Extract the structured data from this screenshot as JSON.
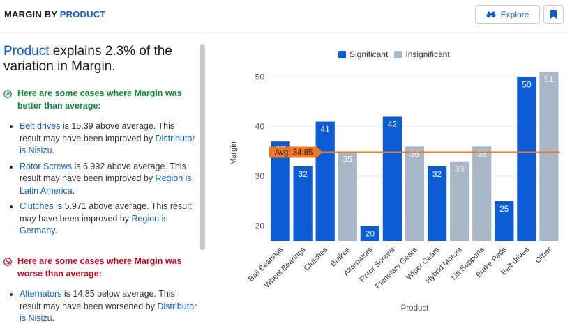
{
  "header": {
    "title_prefix": "MARGIN BY ",
    "title_accent": "PRODUCT",
    "explore_label": "Explore",
    "icons": {
      "explore": "binoculars-icon",
      "bookmark": "bookmark-icon"
    }
  },
  "summary": {
    "headline_accent": "Product",
    "headline_rest": " explains 2.3% of the variation in Margin.",
    "better_heading": "Here are some cases where Margin was better than average:",
    "worse_heading": "Here are some cases where Margin was worse than average:",
    "better_items": [
      {
        "subject": "Belt drives",
        "text": " is 15.39 above average. This result may have been improved by ",
        "link": "Distributor is Nisizu",
        "end": "."
      },
      {
        "subject": "Rotor Screws",
        "text": " is 6.992 above average. This result may have been improved by ",
        "link": "Region is Latin America",
        "end": "."
      },
      {
        "subject": "Clutches",
        "text": " is 5.971 above average. This result may have been improved by ",
        "link": "Region is Germany",
        "end": "."
      }
    ],
    "worse_items": [
      {
        "subject": "Alternators",
        "text": " is 14.85 below average. This result may have been worsened by ",
        "link": "Distributor is Nisizu",
        "end": "."
      }
    ]
  },
  "colors": {
    "significant": "#0b5cd5",
    "insignificant": "#a9b8c9",
    "average_line": "#f0781e",
    "better": "#0a8a3a",
    "worse": "#d0021b"
  },
  "chart_data": {
    "type": "bar",
    "title": "",
    "xlabel": "Product",
    "ylabel": "Margin",
    "ylim": [
      17,
      52
    ],
    "yticks": [
      20,
      30,
      40,
      50
    ],
    "grid": true,
    "legend": [
      "Significant",
      "Insignificant"
    ],
    "legend_position": "top-center",
    "average": {
      "label": "Avg: 34.85",
      "value": 34.85
    },
    "categories": [
      "Ball Bearings",
      "Wheel Bearings",
      "Clutches",
      "Brakes",
      "Alternators",
      "Rotor Screws",
      "Planetary Gears",
      "Wiper Gears",
      "Hybrid Motors",
      "Lift Supports",
      "Brake Pads",
      "Belt drives",
      "Other"
    ],
    "values": [
      37,
      32,
      41,
      35,
      20,
      42,
      36,
      32,
      33,
      36,
      25,
      50,
      51
    ],
    "significant": [
      true,
      true,
      true,
      false,
      true,
      true,
      false,
      true,
      false,
      false,
      true,
      true,
      false
    ]
  }
}
